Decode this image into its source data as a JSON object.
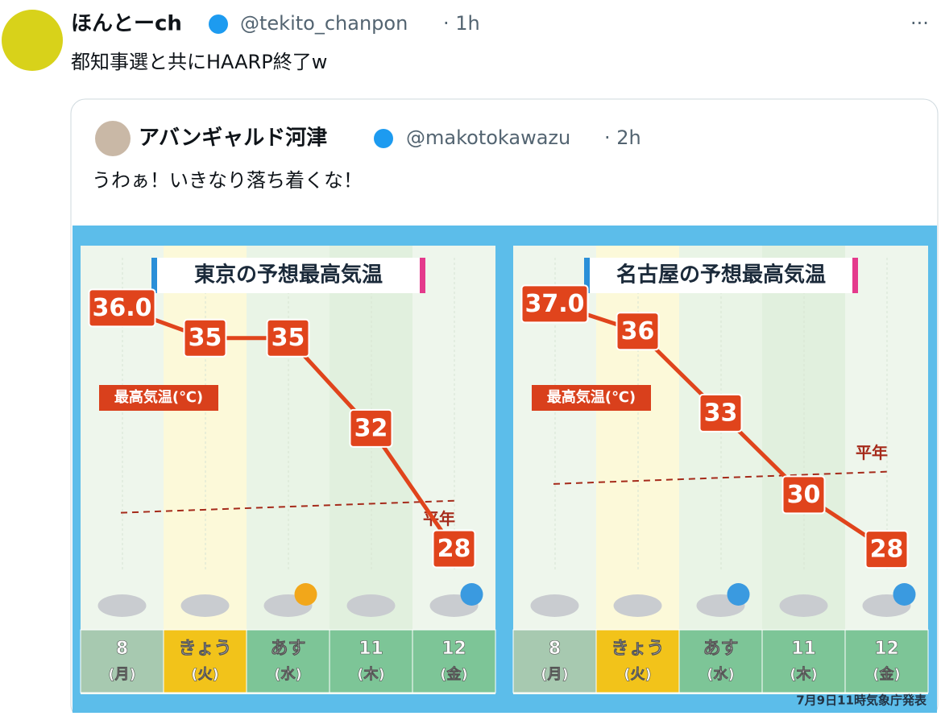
{
  "post": {
    "author": "ほんとーch",
    "handle": "@tekito_chanpon",
    "time": "· 1h",
    "text": "都知事選と共にHAARP終了w"
  },
  "quote": {
    "author": "アバンギャルド河津",
    "handle": "@makotokawazu",
    "time": "· 2h",
    "text": "うわぁ！いきなり落ち着くな！"
  },
  "chart_data": [
    {
      "type": "line",
      "title": "東京の予想最高気温",
      "y_label": "最高気温(℃)",
      "categories": [
        "8",
        "きょう",
        "あす",
        "11",
        "12"
      ],
      "weekdays": [
        "(月)",
        "(火)",
        "(水)",
        "(木)",
        "(金)"
      ],
      "values": [
        36,
        35,
        35,
        32,
        28
      ],
      "value_labels": [
        "36.0",
        "35",
        "35",
        "32",
        "28"
      ],
      "color": "#e0441c",
      "normal": {
        "label": "平年",
        "values": [
          29.2,
          29.6
        ]
      },
      "ylim": [
        25.9,
        37.4
      ]
    },
    {
      "type": "line",
      "title": "名古屋の予想最高気温",
      "y_label": "最高気温(℃)",
      "categories": [
        "8",
        "きょう",
        "あす",
        "11",
        "12"
      ],
      "weekdays": [
        "(月)",
        "(火)",
        "(水)",
        "(木)",
        "(金)"
      ],
      "values": [
        37,
        36,
        33,
        30,
        28
      ],
      "value_labels": [
        "37.0",
        "36",
        "33",
        "30",
        "28"
      ],
      "color": "#e0441c",
      "normal": {
        "label": "平年",
        "values": [
          30.4,
          30.85
        ]
      },
      "ylim": [
        25.7,
        38.4
      ]
    }
  ],
  "footnote": "7月9日11時気象庁発表"
}
